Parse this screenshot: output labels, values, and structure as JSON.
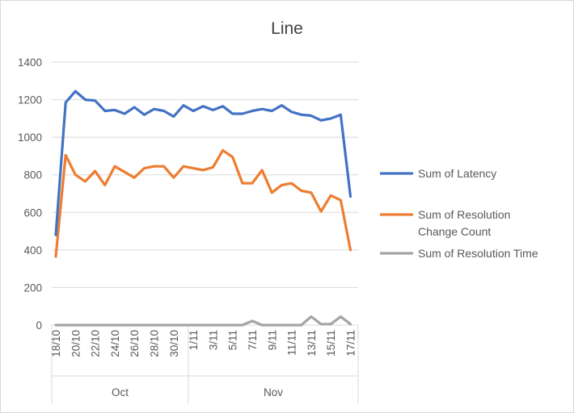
{
  "chart_data": {
    "type": "line",
    "title": "Line",
    "xlabel": "",
    "ylabel": "",
    "ylim": [
      0,
      1400
    ],
    "yticks": [
      0,
      200,
      400,
      600,
      800,
      1000,
      1200,
      1400
    ],
    "grid": true,
    "legend_position": "right",
    "x": [
      "18/10",
      "19/10",
      "20/10",
      "21/10",
      "22/10",
      "23/10",
      "24/10",
      "25/10",
      "26/10",
      "27/10",
      "28/10",
      "29/10",
      "30/10",
      "31/10",
      "1/11",
      "2/11",
      "3/11",
      "4/11",
      "5/11",
      "6/11",
      "7/11",
      "8/11",
      "9/11",
      "10/11",
      "11/11",
      "12/11",
      "13/11",
      "14/11",
      "15/11",
      "16/11",
      "17/11"
    ],
    "x_tick_labels": [
      "18/10",
      "",
      "20/10",
      "",
      "22/10",
      "",
      "24/10",
      "",
      "26/10",
      "",
      "28/10",
      "",
      "30/10",
      "",
      "1/11",
      "",
      "3/11",
      "",
      "5/11",
      "",
      "7/11",
      "",
      "9/11",
      "",
      "11/11",
      "",
      "13/11",
      "",
      "15/11",
      "",
      "17/11"
    ],
    "groups": [
      {
        "label": "Oct",
        "start": 0,
        "end": 13
      },
      {
        "label": "Nov",
        "start": 14,
        "end": 30
      }
    ],
    "series": [
      {
        "name": "Sum of Latency",
        "color": "#4472c4",
        "values": [
          480,
          1185,
          1245,
          1200,
          1195,
          1140,
          1145,
          1125,
          1160,
          1120,
          1150,
          1140,
          1110,
          1170,
          1140,
          1165,
          1145,
          1165,
          1125,
          1125,
          1140,
          1150,
          1140,
          1170,
          1135,
          1120,
          1115,
          1090,
          1100,
          1120,
          685
        ]
      },
      {
        "name": "Sum of Resolution Change Count",
        "legend_lines": [
          "Sum of Resolution",
          "Change Count"
        ],
        "color": "#ed7d31",
        "values": [
          365,
          905,
          800,
          765,
          820,
          745,
          845,
          815,
          785,
          835,
          845,
          845,
          785,
          845,
          835,
          825,
          840,
          930,
          895,
          755,
          755,
          825,
          705,
          745,
          755,
          715,
          705,
          605,
          690,
          665,
          400
        ]
      },
      {
        "name": "Sum of Resolution Time",
        "color": "#a5a5a5",
        "values": [
          0,
          0,
          0,
          0,
          0,
          0,
          0,
          0,
          0,
          0,
          0,
          0,
          0,
          0,
          0,
          0,
          0,
          0,
          0,
          0,
          22,
          0,
          0,
          0,
          0,
          0,
          45,
          5,
          5,
          45,
          5
        ]
      }
    ]
  }
}
